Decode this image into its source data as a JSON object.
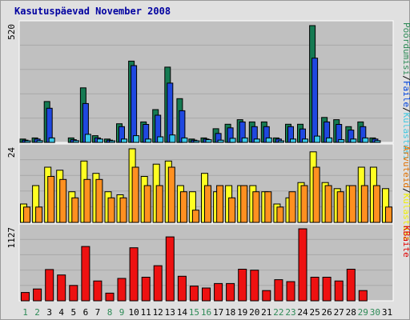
{
  "title": "Kasutuspäevad November 2008",
  "colors": {
    "title": "#0000a0",
    "weekday_tick": "#000000",
    "weekend_tick": "#2e8b57",
    "panel_bg": "#c0c0c0"
  },
  "chart_data": {
    "type": "bar",
    "x": [
      "1",
      "2",
      "3",
      "4",
      "5",
      "6",
      "7",
      "8",
      "9",
      "10",
      "11",
      "12",
      "13",
      "14",
      "15",
      "16",
      "17",
      "18",
      "19",
      "20",
      "21",
      "22",
      "23",
      "24",
      "25",
      "26",
      "27",
      "28",
      "29",
      "30",
      "31"
    ],
    "weekend_days": [
      "1",
      "2",
      "8",
      "9",
      "15",
      "16",
      "22",
      "23",
      "29",
      "30"
    ],
    "panels": [
      {
        "id": "top",
        "ylabel": "520",
        "ylim": [
          0,
          520
        ],
        "legend": [
          "Pöördumisi",
          "/",
          "Faile",
          "/",
          "Külastusi"
        ],
        "legend_colors": [
          "#2e8b57",
          "#000000",
          "#0044dd",
          "#000000",
          "#40c8e0"
        ],
        "series": [
          {
            "name": "Pöördumisi",
            "color": "#157a52",
            "values": [
              15,
              20,
              182,
              0,
              20,
              243,
              30,
              15,
              83,
              362,
              91,
              146,
              335,
              195,
              15,
              20,
              61,
              81,
              101,
              91,
              91,
              20,
              81,
              81,
              520,
              111,
              101,
              70,
              91,
              20,
              0
            ]
          },
          {
            "name": "Faile",
            "color": "#1f48e0",
            "values": [
              10,
              15,
              152,
              0,
              12,
              173,
              20,
              10,
              70,
              342,
              80,
              121,
              264,
              141,
              10,
              15,
              40,
              65,
              91,
              70,
              70,
              15,
              70,
              60,
              375,
              91,
              80,
              55,
              70,
              15,
              0
            ]
          },
          {
            "name": "Külastusi",
            "color": "#38c8e8",
            "values": [
              5,
              8,
              20,
              0,
              8,
              36,
              15,
              6,
              15,
              30,
              15,
              25,
              33,
              20,
              6,
              12,
              10,
              18,
              20,
              15,
              20,
              6,
              15,
              15,
              28,
              20,
              12,
              15,
              20,
              8,
              0
            ]
          }
        ]
      },
      {
        "id": "middle",
        "ylabel": "24",
        "ylim": [
          0,
          24
        ],
        "legend": [
          "Arvuteid",
          "/",
          "Külastusi"
        ],
        "legend_colors": [
          "#e07000",
          "#000000",
          "#f0f000"
        ],
        "series": [
          {
            "name": "Külastusi",
            "color": "#ffff22",
            "values": [
              6,
              12,
              18,
              17,
              10,
              20,
              16,
              10,
              9,
              24,
              15,
              19,
              20,
              12,
              10,
              16,
              10,
              12,
              12,
              12,
              10,
              6,
              8,
              13,
              23,
              13,
              11,
              12,
              18,
              18,
              11
            ]
          },
          {
            "name": "Arvuteid",
            "color": "#ff9020",
            "values": [
              5,
              5,
              15,
              14,
              8,
              14,
              14,
              8,
              8,
              18,
              12,
              12,
              18,
              10,
              4,
              12,
              12,
              8,
              12,
              10,
              10,
              5,
              10,
              12,
              18,
              12,
              10,
              12,
              12,
              12,
              5
            ]
          }
        ]
      },
      {
        "id": "bottom",
        "ylabel": "1127",
        "ylim": [
          0,
          1127
        ],
        "legend": [
          "KBaite"
        ],
        "legend_colors": [
          "#e00000"
        ],
        "series": [
          {
            "name": "KBaite",
            "color": "#ee1111",
            "values": [
              130,
              185,
              490,
              405,
              240,
              850,
              310,
              120,
              350,
              830,
              370,
              550,
              1000,
              385,
              230,
              200,
              270,
              270,
              495,
              480,
              160,
              330,
              300,
              1127,
              370,
              370,
              310,
              495,
              160,
              0,
              0
            ]
          }
        ]
      }
    ]
  }
}
